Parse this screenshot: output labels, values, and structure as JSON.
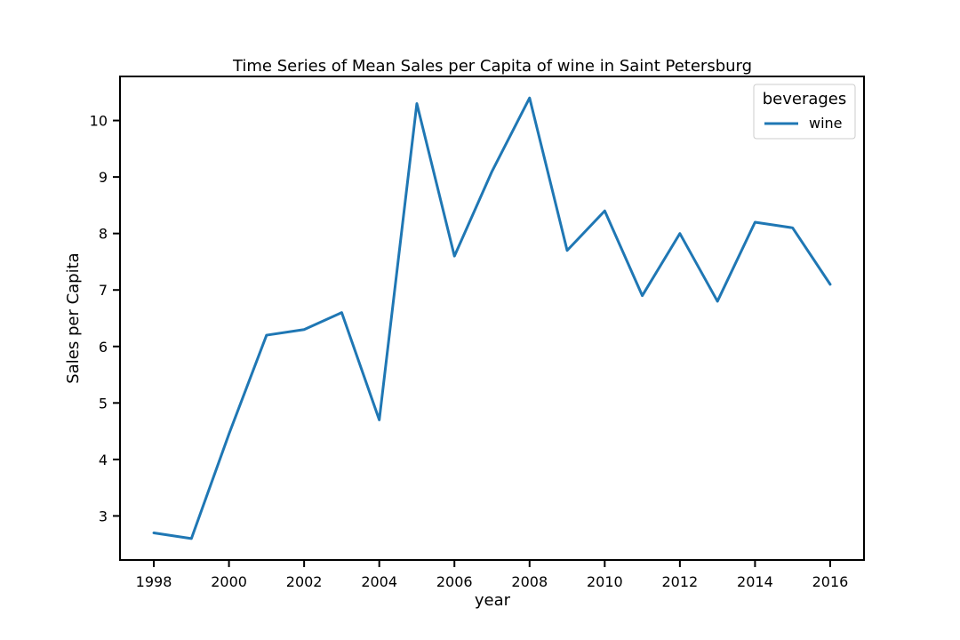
{
  "chart_data": {
    "type": "line",
    "title": "Time Series of Mean Sales per Capita of wine in Saint Petersburg",
    "xlabel": "year",
    "ylabel": "Sales per Capita",
    "xlim": [
      1997.1,
      2016.9
    ],
    "ylim": [
      2.22,
      10.78
    ],
    "xticks": [
      1998,
      2000,
      2002,
      2004,
      2006,
      2008,
      2010,
      2012,
      2014,
      2016
    ],
    "yticks": [
      3,
      4,
      5,
      6,
      7,
      8,
      9,
      10
    ],
    "grid": false,
    "legend": {
      "title": "beverages",
      "placement": "top-right"
    },
    "series": [
      {
        "name": "wine",
        "color": "#1f77b4",
        "x": [
          1998,
          1999,
          2000,
          2001,
          2002,
          2003,
          2004,
          2005,
          2006,
          2007,
          2008,
          2009,
          2010,
          2011,
          2012,
          2013,
          2014,
          2015,
          2016
        ],
        "y": [
          2.7,
          2.6,
          4.45,
          6.2,
          6.3,
          6.6,
          4.7,
          10.3,
          7.6,
          9.1,
          10.4,
          7.7,
          8.4,
          6.9,
          8.0,
          6.8,
          8.2,
          8.1,
          7.1
        ]
      }
    ]
  }
}
